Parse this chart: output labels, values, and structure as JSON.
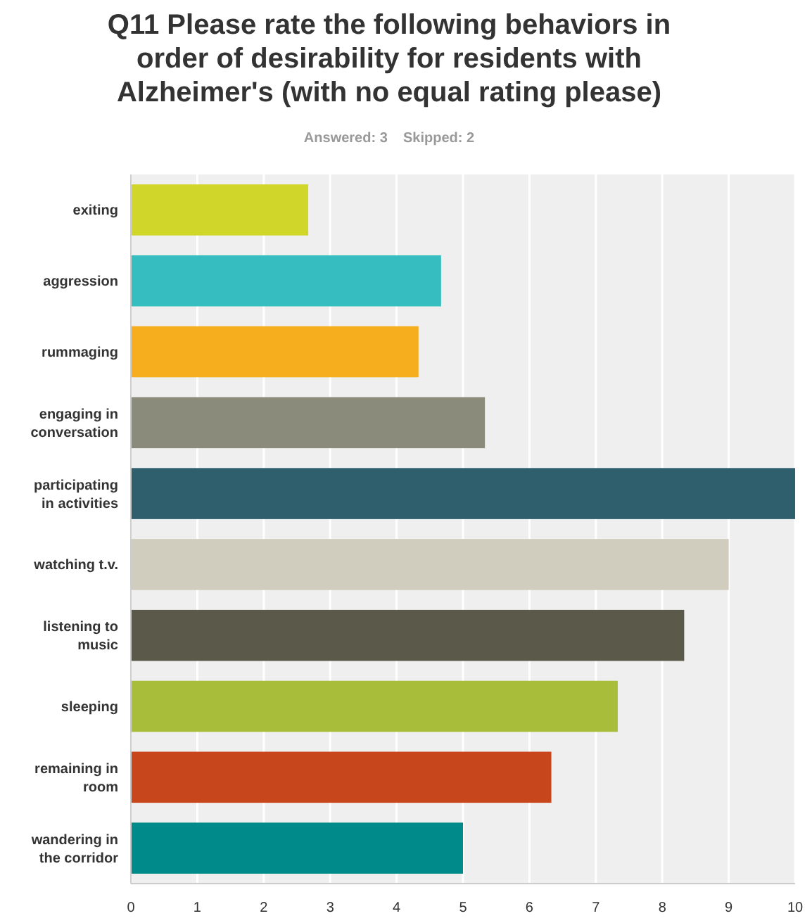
{
  "chart_data": {
    "type": "bar",
    "orientation": "horizontal",
    "title": "Q11 Please rate the following behaviors in order of desirability for residents with Alzheimer's (with no equal rating please)",
    "subtitle": "Answered: 3    Skipped: 2",
    "categories": [
      "exiting",
      "aggression",
      "rummaging",
      "engaging in conversation",
      "participating in activities",
      "watching t.v.",
      "listening to music",
      "sleeping",
      "remaining in room",
      "wandering in the corridor"
    ],
    "values": [
      2.67,
      4.67,
      4.33,
      5.33,
      10,
      9,
      8.33,
      7.33,
      6.33,
      5
    ],
    "colors": [
      "#d0d62a",
      "#35bdbf",
      "#f6ae1f",
      "#8a8b7a",
      "#2f5f6d",
      "#d0cdbf",
      "#5b594a",
      "#a8bd3a",
      "#c8461c",
      "#008b8a"
    ],
    "xlim": [
      0,
      10
    ],
    "xticks": [
      0,
      1,
      2,
      3,
      4,
      5,
      6,
      7,
      8,
      9,
      10
    ],
    "grid": "x"
  }
}
